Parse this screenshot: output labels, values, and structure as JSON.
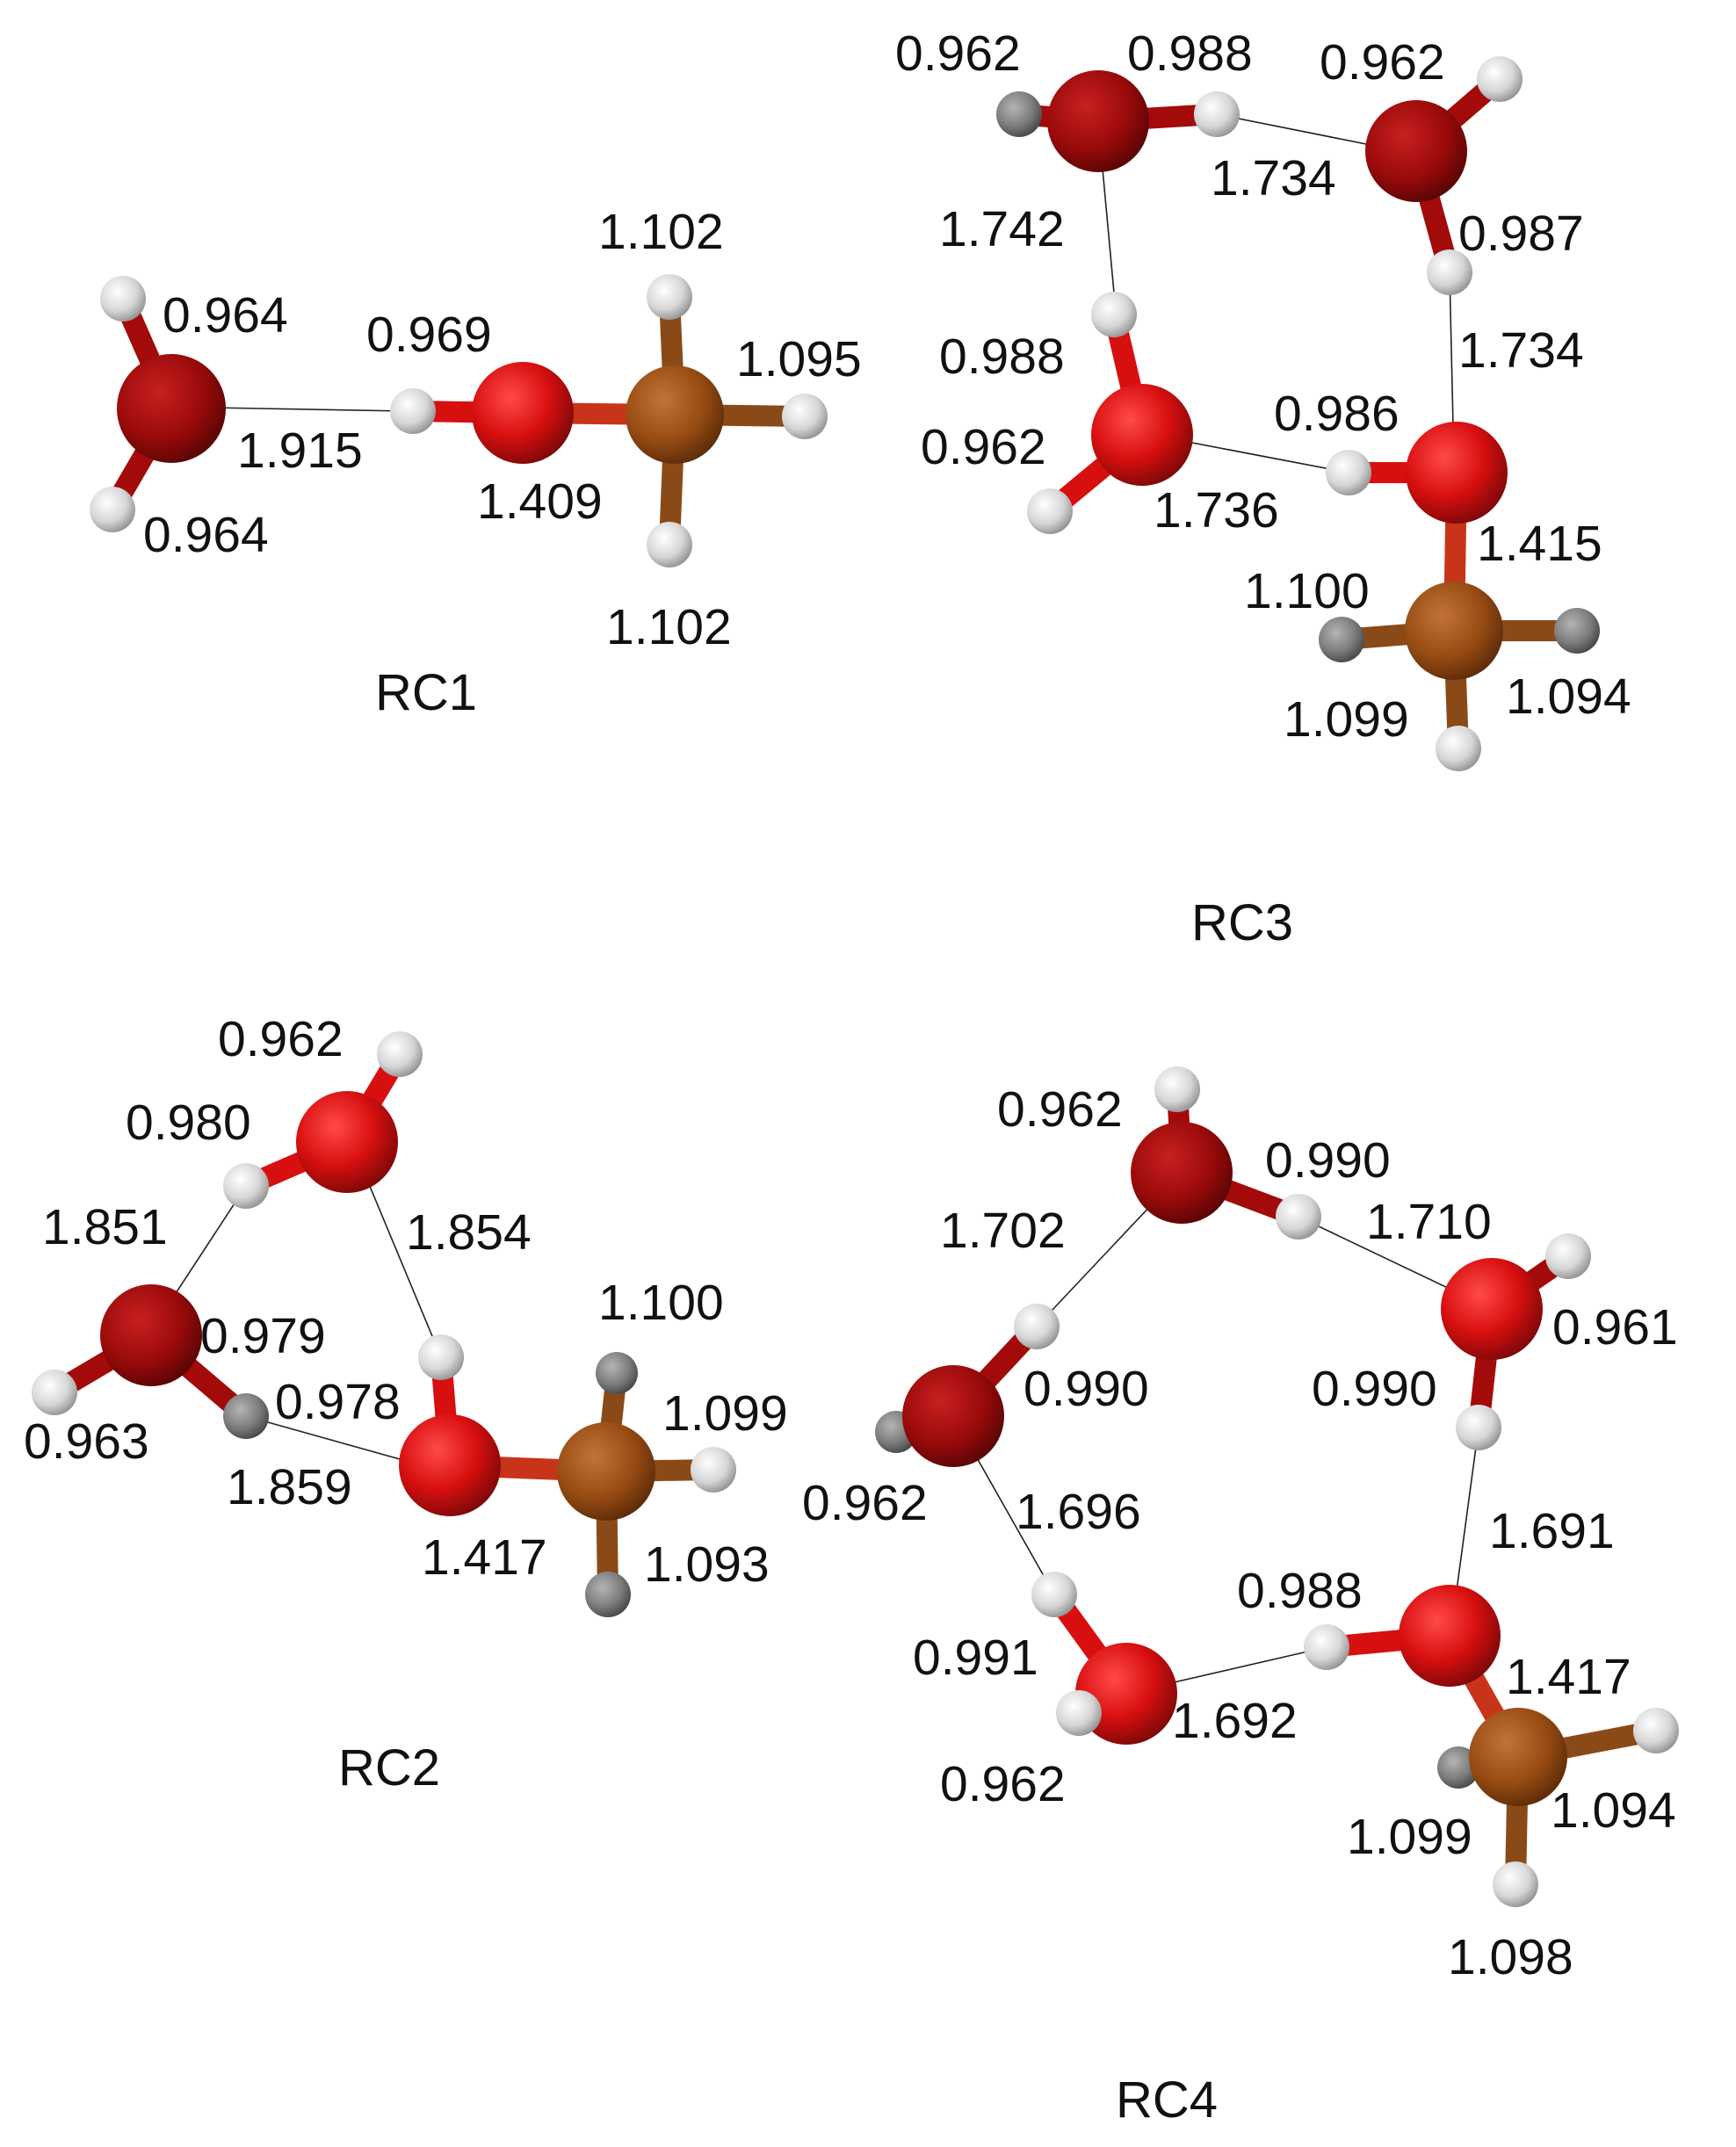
{
  "colors": {
    "oxygen": "#d80f0f",
    "oxygen_dark": "#a30a0a",
    "carbon": "#9c4d14",
    "hydrogen": "#d6d6d6",
    "hydrogen_dark": "#8e8e8e",
    "text": "#111111"
  },
  "structures": [
    {
      "id": "rc1",
      "caption": "RC1",
      "labels": [
        "0.964",
        "0.964",
        "1.915",
        "0.969",
        "1.409",
        "1.102",
        "1.095",
        "1.102"
      ]
    },
    {
      "id": "rc3",
      "caption": "RC3",
      "labels": [
        "0.962",
        "0.988",
        "0.962",
        "1.734",
        "0.987",
        "1.742",
        "0.988",
        "0.962",
        "1.736",
        "0.986",
        "1.734",
        "1.415",
        "1.100",
        "1.099",
        "1.094"
      ]
    },
    {
      "id": "rc2",
      "caption": "RC2",
      "labels": [
        "0.962",
        "0.980",
        "1.851",
        "1.854",
        "0.979",
        "0.963",
        "0.978",
        "1.859",
        "1.100",
        "1.099",
        "1.417",
        "1.093"
      ]
    },
    {
      "id": "rc4",
      "caption": "RC4",
      "labels": [
        "0.962",
        "0.990",
        "1.702",
        "1.710",
        "0.961",
        "0.990",
        "0.990",
        "0.962",
        "1.696",
        "1.691",
        "0.988",
        "0.991",
        "1.692",
        "1.417",
        "0.962",
        "1.099",
        "1.094",
        "1.098"
      ]
    }
  ]
}
